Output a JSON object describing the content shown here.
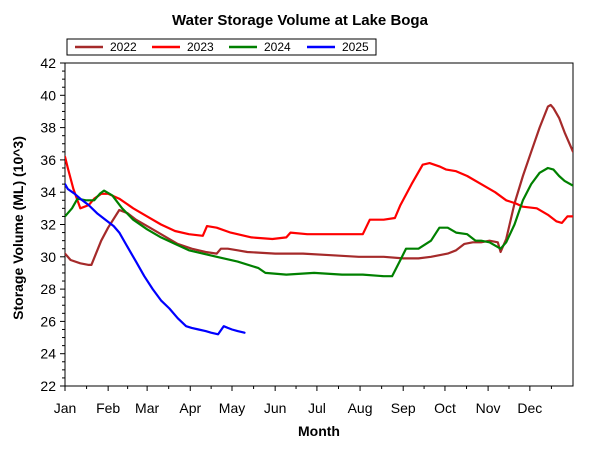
{
  "chart_data": {
    "type": "line",
    "title": "Water Storage Volume at Lake Boga",
    "xlabel": "Month",
    "ylabel": "Storage Volume (ML) (10^3)",
    "x_unit": "day of year",
    "xlim": [
      1,
      366
    ],
    "ylim": [
      22,
      42
    ],
    "y_ticks": [
      22,
      24,
      26,
      28,
      30,
      32,
      34,
      36,
      38,
      40,
      42
    ],
    "x_ticks": [
      {
        "label": "Jan",
        "day": 1
      },
      {
        "label": "Feb",
        "day": 32
      },
      {
        "label": "Mar",
        "day": 60
      },
      {
        "label": "Apr",
        "day": 91
      },
      {
        "label": "May",
        "day": 121
      },
      {
        "label": "Jun",
        "day": 152
      },
      {
        "label": "Jul",
        "day": 182
      },
      {
        "label": "Aug",
        "day": 213
      },
      {
        "label": "Sep",
        "day": 244
      },
      {
        "label": "Oct",
        "day": 274
      },
      {
        "label": "Nov",
        "day": 305
      },
      {
        "label": "Dec",
        "day": 335
      }
    ],
    "grid": false,
    "legend_position": "top-left",
    "series": [
      {
        "name": "2022",
        "color": "#a52a2a",
        "x": [
          1,
          5,
          12,
          18,
          20,
          27,
          32,
          40,
          46,
          52,
          62,
          72,
          82,
          92,
          102,
          110,
          113,
          118,
          125,
          132,
          152,
          172,
          192,
          212,
          230,
          244,
          255,
          264,
          270,
          276,
          282,
          288,
          294,
          300,
          306,
          312,
          314,
          318,
          324,
          330,
          336,
          342,
          348,
          350,
          352,
          356,
          360,
          366
        ],
        "y": [
          30.2,
          29.8,
          29.6,
          29.5,
          29.5,
          31.0,
          31.8,
          32.9,
          32.7,
          32.3,
          31.8,
          31.3,
          30.8,
          30.5,
          30.3,
          30.2,
          30.5,
          30.5,
          30.4,
          30.3,
          30.2,
          30.2,
          30.1,
          30.0,
          30.0,
          29.9,
          29.9,
          30.0,
          30.1,
          30.2,
          30.4,
          30.8,
          30.9,
          30.9,
          31.0,
          30.9,
          30.3,
          31.1,
          33.3,
          35.0,
          36.5,
          38.0,
          39.3,
          39.4,
          39.2,
          38.6,
          37.7,
          36.5
        ]
      },
      {
        "name": "2023",
        "color": "#ff0000",
        "x": [
          1,
          3,
          7,
          12,
          18,
          22,
          27,
          32,
          40,
          50,
          60,
          70,
          80,
          90,
          100,
          103,
          110,
          120,
          135,
          150,
          160,
          163,
          175,
          190,
          205,
          215,
          220,
          230,
          238,
          242,
          250,
          258,
          263,
          270,
          275,
          282,
          290,
          300,
          310,
          318,
          325,
          330,
          340,
          348,
          354,
          358,
          362,
          366
        ],
        "y": [
          36.2,
          35.5,
          34.2,
          33.0,
          33.2,
          33.6,
          33.9,
          33.9,
          33.6,
          33.0,
          32.5,
          32.0,
          31.6,
          31.4,
          31.3,
          31.9,
          31.8,
          31.5,
          31.2,
          31.1,
          31.2,
          31.5,
          31.4,
          31.4,
          31.4,
          31.4,
          32.3,
          32.3,
          32.4,
          33.2,
          34.5,
          35.7,
          35.8,
          35.6,
          35.4,
          35.3,
          35.0,
          34.5,
          34.0,
          33.5,
          33.3,
          33.1,
          33.0,
          32.6,
          32.2,
          32.1,
          32.5,
          32.5
        ]
      },
      {
        "name": "2024",
        "color": "#008000",
        "x": [
          1,
          6,
          10,
          16,
          22,
          26,
          29,
          35,
          42,
          50,
          60,
          70,
          80,
          90,
          100,
          110,
          125,
          140,
          145,
          160,
          180,
          200,
          215,
          230,
          236,
          242,
          246,
          255,
          264,
          270,
          276,
          282,
          290,
          296,
          300,
          306,
          314,
          318,
          324,
          330,
          336,
          342,
          348,
          352,
          356,
          360,
          366
        ],
        "y": [
          32.5,
          33.0,
          33.6,
          33.5,
          33.5,
          33.9,
          34.1,
          33.8,
          33.0,
          32.3,
          31.7,
          31.2,
          30.8,
          30.4,
          30.2,
          30.0,
          29.7,
          29.3,
          29.0,
          28.9,
          29.0,
          28.9,
          28.9,
          28.8,
          28.8,
          29.8,
          30.5,
          30.5,
          31.0,
          31.8,
          31.8,
          31.5,
          31.4,
          31.0,
          31.0,
          30.9,
          30.5,
          30.9,
          32.0,
          33.5,
          34.5,
          35.2,
          35.5,
          35.4,
          35.0,
          34.7,
          34.4
        ]
      },
      {
        "name": "2025",
        "color": "#0000ff",
        "x": [
          1,
          3,
          8,
          12,
          18,
          24,
          30,
          36,
          40,
          46,
          52,
          58,
          64,
          70,
          76,
          82,
          88,
          92,
          97,
          102,
          106,
          111,
          115,
          118,
          121,
          125,
          130
        ],
        "y": [
          34.5,
          34.2,
          33.9,
          33.6,
          33.2,
          32.7,
          32.3,
          31.9,
          31.5,
          30.6,
          29.7,
          28.8,
          28.0,
          27.3,
          26.8,
          26.2,
          25.7,
          25.6,
          25.5,
          25.4,
          25.3,
          25.2,
          25.7,
          25.6,
          25.5,
          25.4,
          25.3
        ]
      }
    ]
  }
}
